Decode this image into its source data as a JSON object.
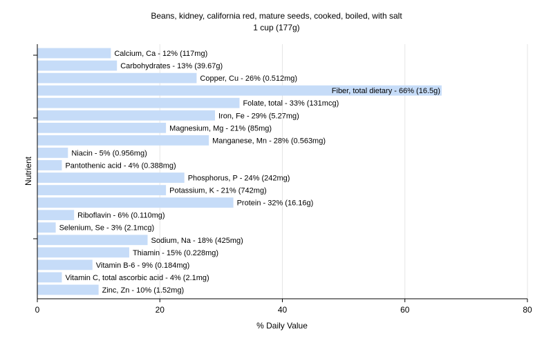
{
  "chart_data": {
    "type": "bar",
    "orientation": "horizontal",
    "title": "Beans, kidney, california red, mature seeds, cooked, boiled, with salt",
    "subtitle": "1 cup (177g)",
    "xlabel": "% Daily Value",
    "ylabel": "Nutrient",
    "xlim": [
      0,
      80
    ],
    "xticks": [
      0,
      20,
      40,
      60,
      80
    ],
    "grid": true,
    "bar_color": "#c6dcf8",
    "categories": [
      "Calcium, Ca",
      "Carbohydrates",
      "Copper, Cu",
      "Fiber, total dietary",
      "Folate, total",
      "Iron, Fe",
      "Magnesium, Mg",
      "Manganese, Mn",
      "Niacin",
      "Pantothenic acid",
      "Phosphorus, P",
      "Potassium, K",
      "Protein",
      "Riboflavin",
      "Selenium, Se",
      "Sodium, Na",
      "Thiamin",
      "Vitamin B-6",
      "Vitamin C, total ascorbic acid",
      "Zinc, Zn"
    ],
    "values": [
      12,
      13,
      26,
      66,
      33,
      29,
      21,
      28,
      5,
      4,
      24,
      21,
      32,
      6,
      3,
      18,
      15,
      9,
      4,
      10
    ],
    "labels": [
      "Calcium, Ca - 12% (117mg)",
      "Carbohydrates - 13% (39.67g)",
      "Copper, Cu - 26% (0.512mg)",
      "Fiber, total dietary - 66% (16.5g)",
      "Folate, total - 33% (131mcg)",
      "Iron, Fe - 29% (5.27mg)",
      "Magnesium, Mg - 21% (85mg)",
      "Manganese, Mn - 28% (0.563mg)",
      "Niacin - 5% (0.956mg)",
      "Pantothenic acid - 4% (0.388mg)",
      "Phosphorus, P - 24% (242mg)",
      "Potassium, K - 21% (742mg)",
      "Protein - 32% (16.16g)",
      "Riboflavin - 6% (0.110mg)",
      "Selenium, Se - 3% (2.1mcg)",
      "Sodium, Na - 18% (425mg)",
      "Thiamin - 15% (0.228mg)",
      "Vitamin B-6 - 9% (0.184mg)",
      "Vitamin C, total ascorbic acid - 4% (2.1mg)",
      "Zinc, Zn - 10% (1.52mg)"
    ]
  }
}
